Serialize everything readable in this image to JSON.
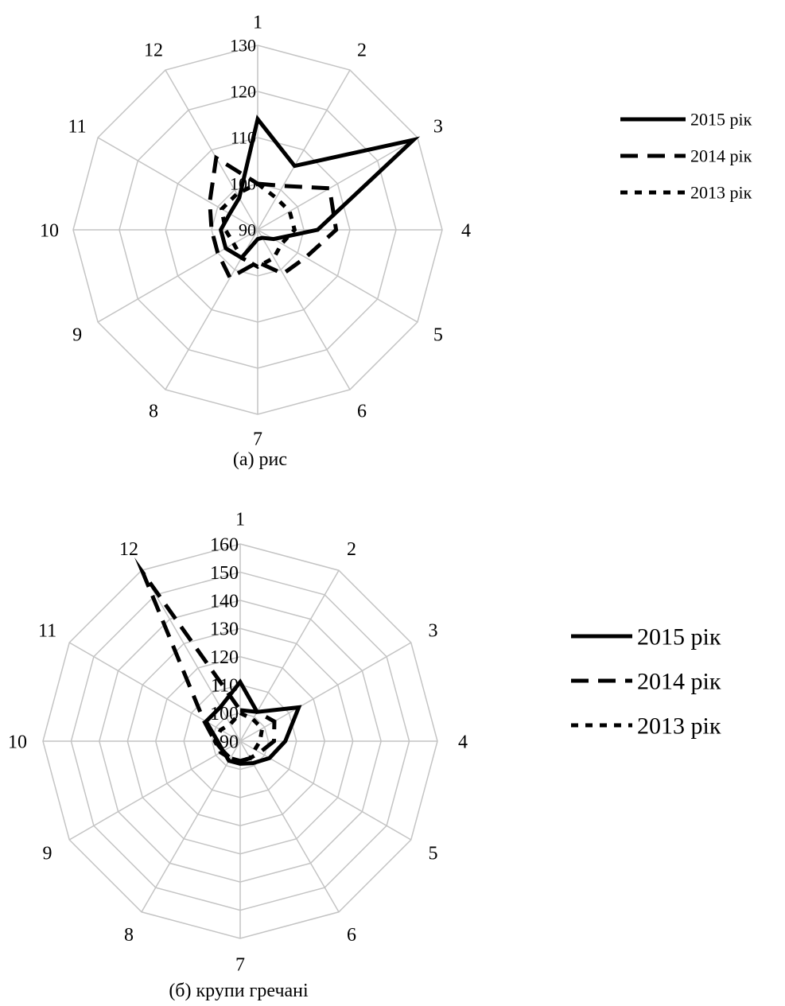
{
  "chart_data": [
    {
      "type": "radar",
      "caption": "(а) рис",
      "categories": [
        "1",
        "2",
        "3",
        "4",
        "5",
        "6",
        "7",
        "8",
        "9",
        "10",
        "11",
        "12"
      ],
      "rlim": [
        90,
        130
      ],
      "tick_values": [
        90,
        100,
        110,
        120,
        130
      ],
      "tick_labels": [
        "90",
        "100",
        "110",
        "120",
        "130"
      ],
      "grid": true,
      "legend_position": "right",
      "series": [
        {
          "name": "2015 рік",
          "style": "solid",
          "values": [
            114,
            106,
            129,
            103,
            94,
            92,
            92,
            97,
            98,
            98,
            97,
            98
          ]
        },
        {
          "name": "2014 рік",
          "style": "dashed",
          "values": [
            100,
            101,
            108,
            107,
            102,
            101,
            97,
            102,
            100,
            100,
            102,
            108
          ]
        },
        {
          "name": "2013 рік",
          "style": "dotted",
          "values": [
            100,
            98,
            98,
            98,
            96,
            97,
            98,
            97,
            96,
            97,
            99,
            99
          ]
        }
      ]
    },
    {
      "type": "radar",
      "caption": "(б) крупи гречані",
      "categories": [
        "1",
        "2",
        "3",
        "4",
        "5",
        "6",
        "7",
        "8",
        "9",
        "10",
        "11",
        "12"
      ],
      "rlim": [
        90,
        160
      ],
      "tick_values": [
        90,
        100,
        110,
        120,
        130,
        140,
        150,
        160
      ],
      "tick_labels": [
        "90",
        "100",
        "110",
        "120",
        "130",
        "140",
        "150",
        "160"
      ],
      "grid": true,
      "legend_position": "right",
      "series": [
        {
          "name": "2015 рік",
          "style": "solid",
          "values": [
            111,
            102,
            114,
            106,
            102,
            99,
            98,
            98,
            97,
            98,
            104,
            104
          ]
        },
        {
          "name": "2014 рік",
          "style": "dashed",
          "values": [
            101,
            102,
            104,
            102,
            98,
            97,
            97,
            97,
            97,
            99,
            105,
            159
          ]
        },
        {
          "name": "2013 рік",
          "style": "dotted",
          "values": [
            100,
            99,
            99,
            97,
            96,
            97,
            97,
            97,
            98,
            99,
            98,
            97
          ]
        }
      ]
    }
  ]
}
